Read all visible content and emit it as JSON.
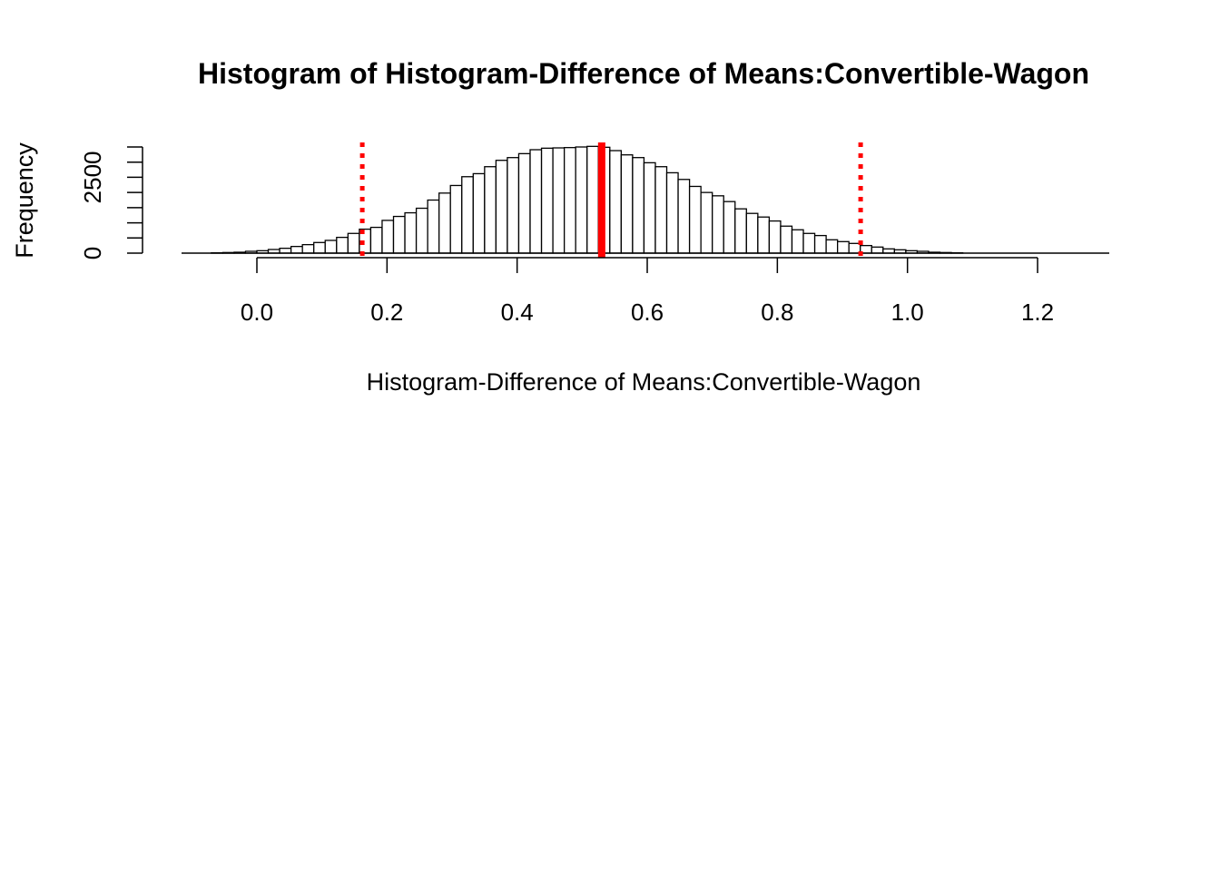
{
  "chart_data": {
    "type": "bar",
    "title": "Histogram of  Histogram-Difference of Means:Convertible-Wagon",
    "xlabel": "Histogram-Difference of Means:Convertible-Wagon",
    "ylabel": "Frequency",
    "xlim": [
      -0.12,
      1.32
    ],
    "ylim": [
      0,
      3500
    ],
    "x_ticks": [
      0.0,
      0.2,
      0.4,
      0.6,
      0.8,
      1.0,
      1.2
    ],
    "x_tick_labels": [
      "0.0",
      "0.2",
      "0.4",
      "0.6",
      "0.8",
      "1.0",
      "1.2"
    ],
    "y_ticks": [
      0,
      500,
      1000,
      1500,
      2000,
      2500,
      3000,
      3500
    ],
    "y_tick_labels": [
      "0",
      "",
      "",
      "",
      "",
      "2500",
      "",
      ""
    ],
    "bin_start": -0.07,
    "bin_width": 0.0175,
    "values": [
      10,
      20,
      30,
      60,
      80,
      120,
      160,
      220,
      280,
      350,
      420,
      520,
      650,
      790,
      850,
      1080,
      1210,
      1330,
      1480,
      1750,
      1980,
      2230,
      2520,
      2620,
      2850,
      3060,
      3150,
      3280,
      3410,
      3460,
      3470,
      3480,
      3500,
      3520,
      3490,
      3380,
      3240,
      3150,
      2980,
      2850,
      2650,
      2430,
      2200,
      2000,
      1890,
      1700,
      1460,
      1310,
      1190,
      1060,
      890,
      770,
      650,
      580,
      440,
      380,
      320,
      250,
      200,
      140,
      110,
      80,
      60,
      30,
      20,
      10
    ],
    "vlines": [
      {
        "x": 0.53,
        "style": "solid",
        "color": "#ff0000"
      },
      {
        "x": 0.162,
        "style": "dotted",
        "color": "#ff0000"
      },
      {
        "x": 0.928,
        "style": "dotted",
        "color": "#ff0000"
      }
    ],
    "bar_fill": "#ffffff",
    "bar_stroke": "#000000",
    "grid": false,
    "legend": "none"
  }
}
